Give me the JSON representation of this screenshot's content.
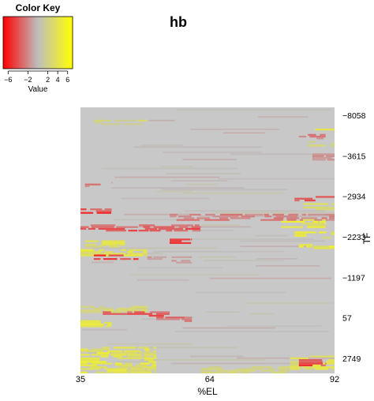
{
  "chart_data": {
    "type": "heatmap",
    "title": "hb",
    "xlabel": "%EL",
    "ylabel": "TF",
    "x_tick_labels": [
      "35",
      "64",
      "92"
    ],
    "x_ticks": [
      35,
      64,
      92
    ],
    "x_range": [
      35,
      92
    ],
    "y_tick_labels": [
      "-8058",
      "-3615",
      "-2934",
      "-2233",
      "-1197",
      "57",
      "2749"
    ],
    "color_key": {
      "title": "Color Key",
      "label": "Value",
      "tick_labels": [
        "−6",
        "−2",
        "2",
        "4",
        "6"
      ],
      "ticks": [
        -6,
        -2,
        2,
        4,
        6
      ],
      "range": [
        -7,
        7
      ],
      "colors": {
        "low": "#ff0000",
        "mid": "#bebebe",
        "high": "#ffff00"
      }
    },
    "background_color": "#c8c8c8",
    "rows_approx": 150,
    "columns_approx": 58,
    "color_bands": [
      {
        "rows": [
          7,
          10
        ],
        "x": [
          38,
          50
        ],
        "value": 2.5
      },
      {
        "rows": [
          12,
          14
        ],
        "x": [
          85,
          92
        ],
        "value": 4
      },
      {
        "rows": [
          15,
          18
        ],
        "x": [
          84,
          90
        ],
        "value": -3
      },
      {
        "rows": [
          19,
          22
        ],
        "x": [
          86,
          92
        ],
        "value": 3
      },
      {
        "rows": [
          26,
          30
        ],
        "x": [
          87,
          92
        ],
        "value": -2
      },
      {
        "rows": [
          42,
          45
        ],
        "x": [
          36,
          42
        ],
        "value": -3
      },
      {
        "rows": [
          50,
          53
        ],
        "x": [
          83,
          92
        ],
        "value": -4
      },
      {
        "rows": [
          54,
          58
        ],
        "x": [
          85,
          92
        ],
        "value": 4
      },
      {
        "rows": [
          57,
          60
        ],
        "x": [
          35,
          42
        ],
        "value": -5
      },
      {
        "rows": [
          60,
          64
        ],
        "x": [
          55,
          92
        ],
        "value": -2.5
      },
      {
        "rows": [
          63,
          68
        ],
        "x": [
          80,
          90
        ],
        "value": 5
      },
      {
        "rows": [
          66,
          70
        ],
        "x": [
          35,
          62
        ],
        "value": -4
      },
      {
        "rows": [
          70,
          74
        ],
        "x": [
          83,
          92
        ],
        "value": 5
      },
      {
        "rows": [
          74,
          77
        ],
        "x": [
          55,
          60
        ],
        "value": -5
      },
      {
        "rows": [
          75,
          79
        ],
        "x": [
          36,
          45
        ],
        "value": 4
      },
      {
        "rows": [
          77,
          80
        ],
        "x": [
          84,
          92
        ],
        "value": 5
      },
      {
        "rows": [
          80,
          84
        ],
        "x": [
          35,
          50
        ],
        "value": 4.5
      },
      {
        "rows": [
          83,
          86
        ],
        "x": [
          38,
          48
        ],
        "value": -5
      },
      {
        "rows": [
          84,
          88
        ],
        "x": [
          50,
          60
        ],
        "value": -1.5
      },
      {
        "rows": [
          112,
          116
        ],
        "x": [
          35,
          50
        ],
        "value": 3
      },
      {
        "rows": [
          115,
          118
        ],
        "x": [
          40,
          55
        ],
        "value": -4
      },
      {
        "rows": [
          118,
          121
        ],
        "x": [
          52,
          60
        ],
        "value": -3.5
      },
      {
        "rows": [
          120,
          124
        ],
        "x": [
          35,
          42
        ],
        "value": 4.5
      },
      {
        "rows": [
          135,
          150
        ],
        "x": [
          35,
          52
        ],
        "value": 4.5
      },
      {
        "rows": [
          140,
          148
        ],
        "x": [
          82,
          92
        ],
        "value": 4
      },
      {
        "rows": [
          142,
          146
        ],
        "x": [
          84,
          90
        ],
        "value": -5
      },
      {
        "rows": [
          146,
          150
        ],
        "x": [
          62,
          82
        ],
        "value": 2.5
      }
    ]
  }
}
